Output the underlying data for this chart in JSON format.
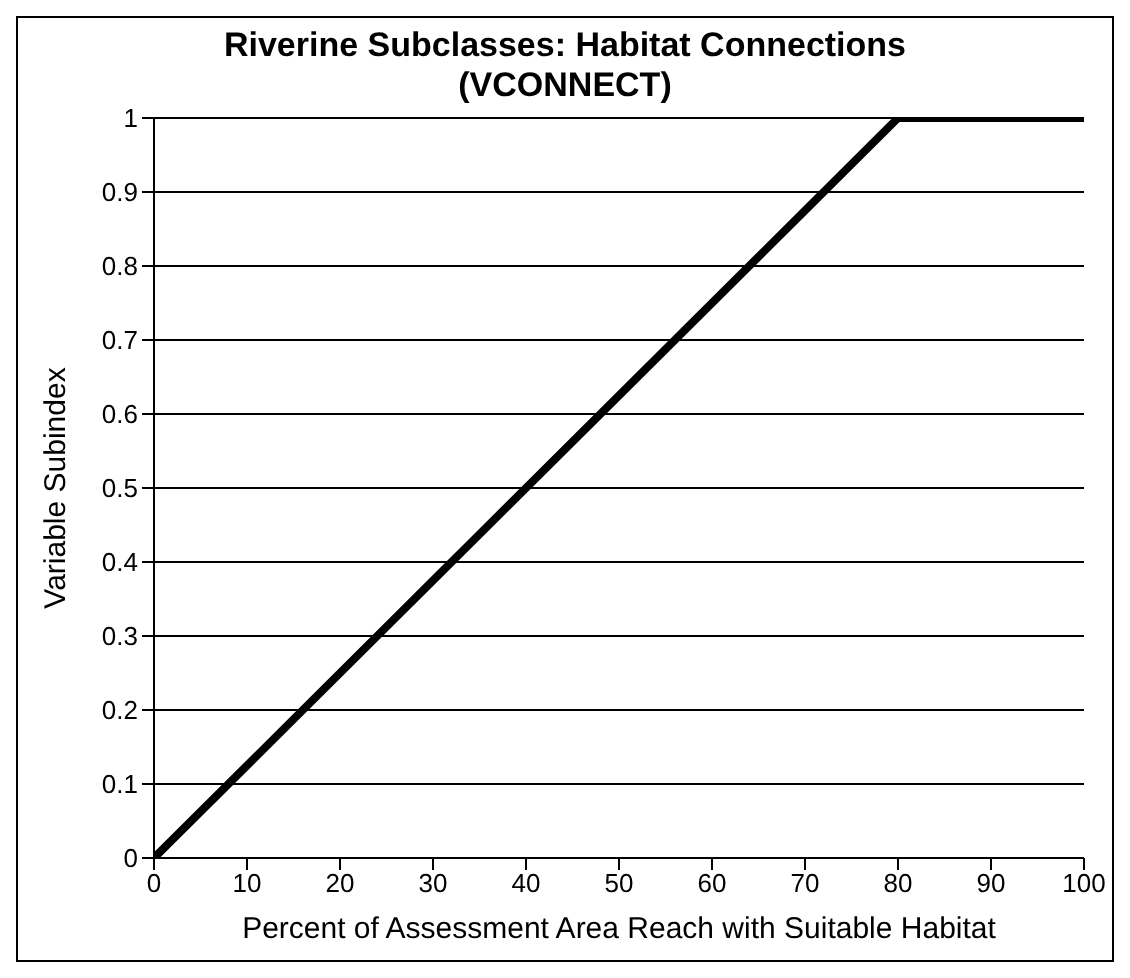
{
  "chart_data": {
    "type": "line",
    "title": "Riverine Subclasses: Habitat Connections (VCONNECT)",
    "xlabel": "Percent of Assessment Area Reach with Suitable Habitat",
    "ylabel": "Variable Subindex",
    "x": [
      0,
      80,
      100
    ],
    "series": [
      {
        "color": "#000000",
        "values": [
          0,
          1,
          1
        ]
      }
    ],
    "xlim": [
      0,
      100
    ],
    "xticks": [
      0,
      10,
      20,
      30,
      40,
      50,
      60,
      70,
      80,
      90,
      100
    ],
    "ylim": [
      0,
      1
    ],
    "yticks": [
      0,
      0.1,
      0.2,
      0.3,
      0.4,
      0.5,
      0.6,
      0.7,
      0.8,
      0.9,
      1
    ],
    "grid": "y",
    "marker": "none",
    "line_style": "solid",
    "legend": false
  }
}
